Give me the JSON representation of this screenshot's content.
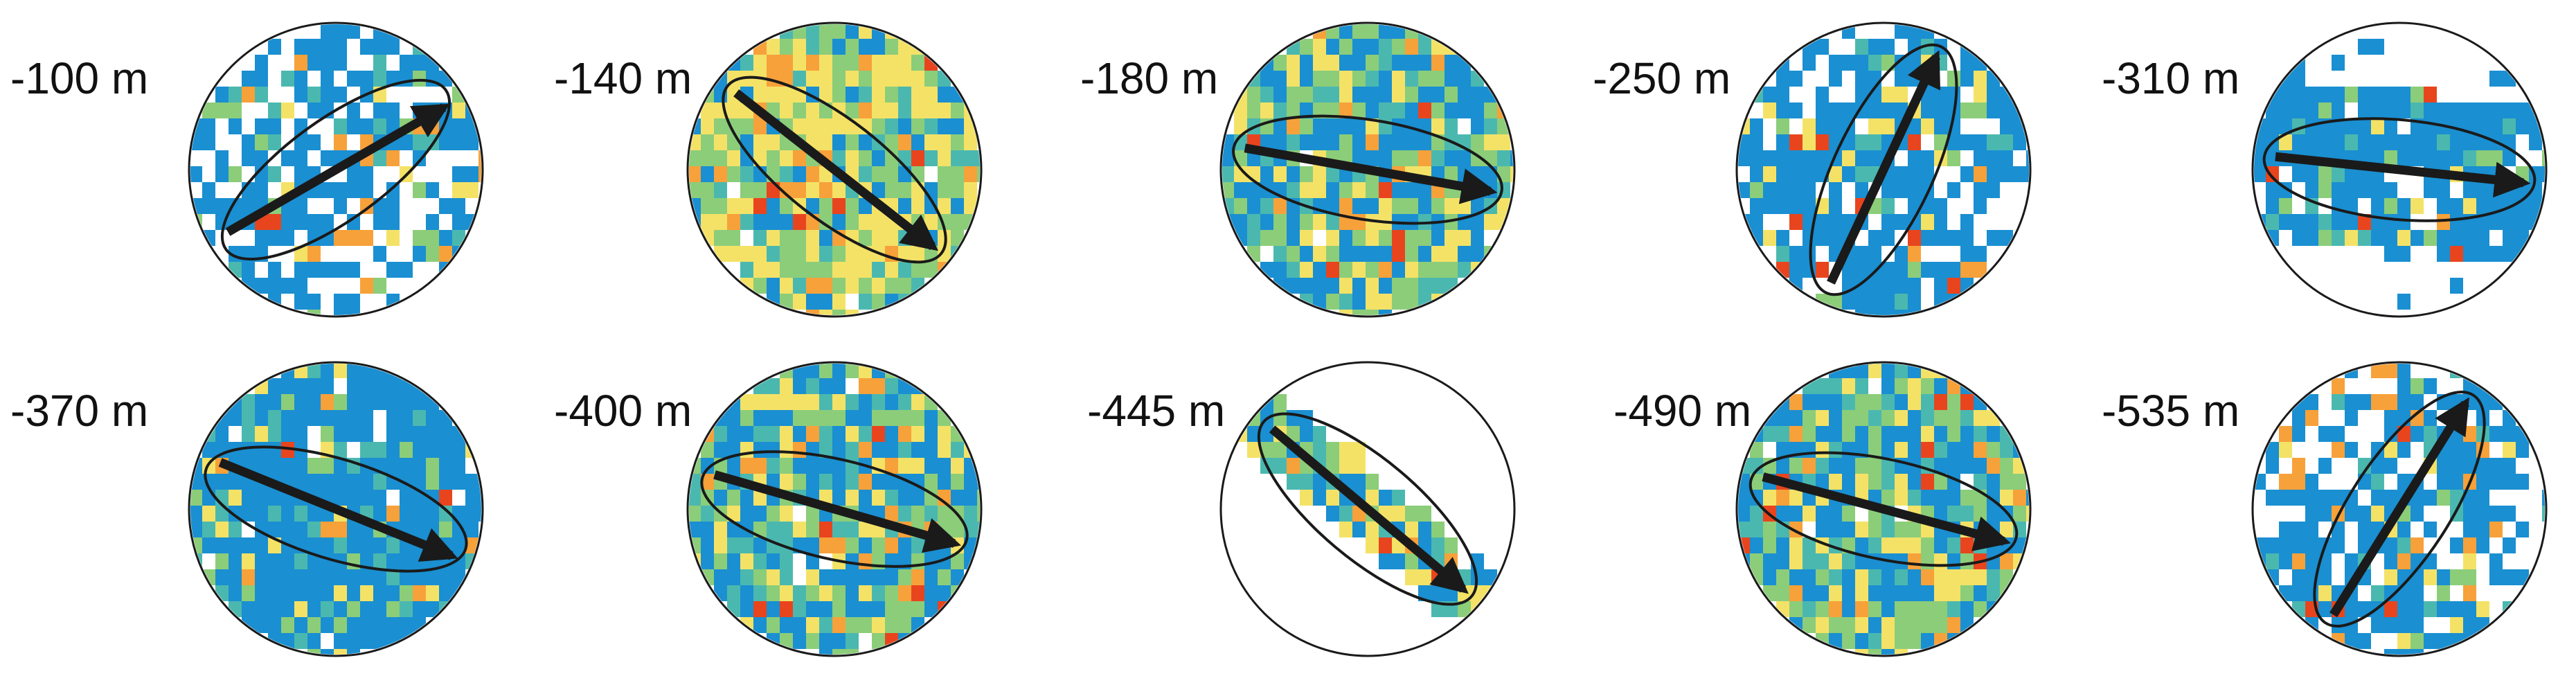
{
  "figure": {
    "panels": [
      {
        "label": "-100 m",
        "azimuth_deg": 60,
        "ellipse_angle_deg": -36,
        "pattern": "sparse-blue"
      },
      {
        "label": "-140 m",
        "azimuth_deg": 128,
        "ellipse_angle_deg": 38,
        "pattern": "dense-yellow"
      },
      {
        "label": "-180 m",
        "azimuth_deg": 100,
        "ellipse_angle_deg": 9,
        "pattern": "dense-mixed"
      },
      {
        "label": "-250 m",
        "azimuth_deg": 25,
        "ellipse_angle_deg": -65,
        "pattern": "sparse-blue"
      },
      {
        "label": "-310 m",
        "azimuth_deg": 96,
        "ellipse_angle_deg": 5,
        "pattern": "patchy-blue"
      },
      {
        "label": "-370 m",
        "azimuth_deg": 112,
        "ellipse_angle_deg": 17,
        "pattern": "blue-dominant"
      },
      {
        "label": "-400 m",
        "azimuth_deg": 106,
        "ellipse_angle_deg": 13,
        "pattern": "dense-mixed"
      },
      {
        "label": "-445 m",
        "azimuth_deg": 130,
        "ellipse_angle_deg": 40,
        "pattern": "band-diagonal"
      },
      {
        "label": "-490 m",
        "azimuth_deg": 105,
        "ellipse_angle_deg": 12,
        "pattern": "dense-mixed"
      },
      {
        "label": "-535 m",
        "azimuth_deg": 32,
        "ellipse_angle_deg": -57,
        "pattern": "sparse-blue"
      }
    ],
    "colors": {
      "blue": "#1a8fd1",
      "teal": "#4bb8b0",
      "green": "#8ccd7a",
      "yellow": "#f4e267",
      "orange": "#f7a13a",
      "red": "#e8451e",
      "outline": "#1a1a1a",
      "arrow": "#1a1a1a"
    }
  }
}
